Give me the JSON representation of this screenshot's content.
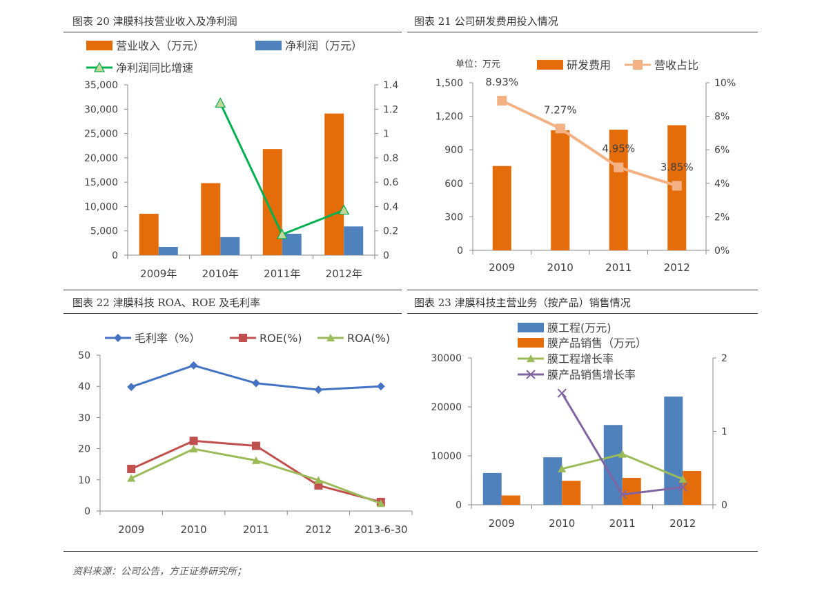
{
  "panels": [
    {
      "title": "图表 20 津膜科技营业收入及净利润"
    },
    {
      "title": "图表 21 公司研发费用投入情况"
    },
    {
      "title": "图表 22 津膜科技 ROA、ROE 及毛利率"
    },
    {
      "title": "图表 23 津膜科技主营业务（按产品）销售情况"
    }
  ],
  "source": "资料来源：公司公告，方正证券研究所；",
  "chart_data": [
    {
      "type": "bar",
      "categories": [
        "2009年",
        "2010年",
        "2011年",
        "2012年"
      ],
      "series": [
        {
          "name": "营业收入（万元）",
          "type": "bar",
          "axis": "left",
          "color": "#E46C0A",
          "values": [
            8500,
            14800,
            21800,
            29100
          ]
        },
        {
          "name": "净利润（万元）",
          "type": "bar",
          "axis": "left",
          "color": "#4F81BD",
          "values": [
            1700,
            3700,
            4400,
            5900
          ]
        },
        {
          "name": "净利润同比增速",
          "type": "line",
          "axis": "right",
          "color": "#00B050",
          "values": [
            null,
            1.25,
            0.17,
            0.37
          ]
        }
      ],
      "ylim": [
        0,
        35000
      ],
      "yticks": [
        0,
        5000,
        10000,
        15000,
        20000,
        25000,
        30000,
        35000
      ],
      "ytick_labels": [
        "0",
        "5,000",
        "10,000",
        "15,000",
        "20,000",
        "25,000",
        "30,000",
        "35,000"
      ],
      "y2lim": [
        0,
        1.4
      ],
      "y2ticks": [
        0,
        0.2,
        0.4,
        0.6,
        0.8,
        1,
        1.2,
        1.4
      ],
      "y2tick_labels": [
        "0",
        "0.2",
        "0.4",
        "0.6",
        "0.8",
        "1",
        "1.2",
        "1.4"
      ],
      "legend": "top"
    },
    {
      "type": "bar",
      "unit_note": "单位：万元",
      "categories": [
        "2009",
        "2010",
        "2011",
        "2012"
      ],
      "series": [
        {
          "name": "研发费用",
          "type": "bar",
          "axis": "left",
          "color": "#E46C0A",
          "values": [
            755,
            1075,
            1080,
            1120
          ]
        },
        {
          "name": "营收占比",
          "type": "line",
          "axis": "right",
          "color": "#F4B183",
          "values": [
            8.93,
            7.27,
            4.95,
            3.85
          ],
          "labels": [
            "8.93%",
            "7.27%",
            "4.95%",
            "3.85%"
          ]
        }
      ],
      "ylim": [
        0,
        1500
      ],
      "yticks": [
        0,
        300,
        600,
        900,
        1200,
        1500
      ],
      "ytick_labels": [
        "0",
        "300",
        "600",
        "900",
        "1,200",
        "1,500"
      ],
      "y2lim": [
        0,
        10
      ],
      "y2ticks": [
        0,
        2,
        4,
        6,
        8,
        10
      ],
      "y2tick_labels": [
        "0%",
        "2%",
        "4%",
        "6%",
        "8%",
        "10%"
      ],
      "legend": "top"
    },
    {
      "type": "line",
      "categories": [
        "2009",
        "2010",
        "2011",
        "2012",
        "2013-6-30"
      ],
      "series": [
        {
          "name": "毛利率（%）",
          "marker": "diamond",
          "color": "#4472C4",
          "values": [
            39.8,
            46.7,
            41.0,
            38.9,
            40.0
          ]
        },
        {
          "name": "ROE(%)",
          "marker": "square",
          "color": "#C0504D",
          "values": [
            13.5,
            22.5,
            20.9,
            8.2,
            2.9
          ]
        },
        {
          "name": "ROA(%)",
          "marker": "triangle",
          "color": "#9BBB59",
          "values": [
            10.5,
            19.9,
            16.2,
            9.9,
            2.4
          ]
        }
      ],
      "ylim": [
        0,
        50
      ],
      "yticks": [
        0,
        10,
        20,
        30,
        40,
        50
      ],
      "ytick_labels": [
        "0",
        "10",
        "20",
        "30",
        "40",
        "50"
      ],
      "legend": "top"
    },
    {
      "type": "bar",
      "categories": [
        "2009",
        "2010",
        "2011",
        "2012"
      ],
      "series": [
        {
          "name": "膜工程(万元)",
          "type": "bar",
          "axis": "left",
          "color": "#4F81BD",
          "values": [
            6500,
            9700,
            16300,
            22100
          ]
        },
        {
          "name": "膜产品销售（万元）",
          "type": "bar",
          "axis": "left",
          "color": "#E46C0A",
          "values": [
            1900,
            4900,
            5500,
            6900
          ]
        },
        {
          "name": "膜工程增长率",
          "type": "line",
          "axis": "right",
          "marker": "triangle",
          "color": "#9BBB59",
          "values": [
            null,
            0.49,
            0.69,
            0.35
          ]
        },
        {
          "name": "膜产品销售增长率",
          "type": "line",
          "axis": "right",
          "marker": "x",
          "color": "#8064A2",
          "values": [
            null,
            1.52,
            0.14,
            0.24
          ]
        }
      ],
      "ylim": [
        0,
        30000
      ],
      "yticks": [
        0,
        10000,
        20000,
        30000
      ],
      "ytick_labels": [
        "0",
        "10000",
        "20000",
        "30000"
      ],
      "y2lim": [
        0,
        2
      ],
      "y2ticks": [
        0,
        1,
        2
      ],
      "y2tick_labels": [
        "0",
        "1",
        "2"
      ],
      "legend": "top"
    }
  ]
}
